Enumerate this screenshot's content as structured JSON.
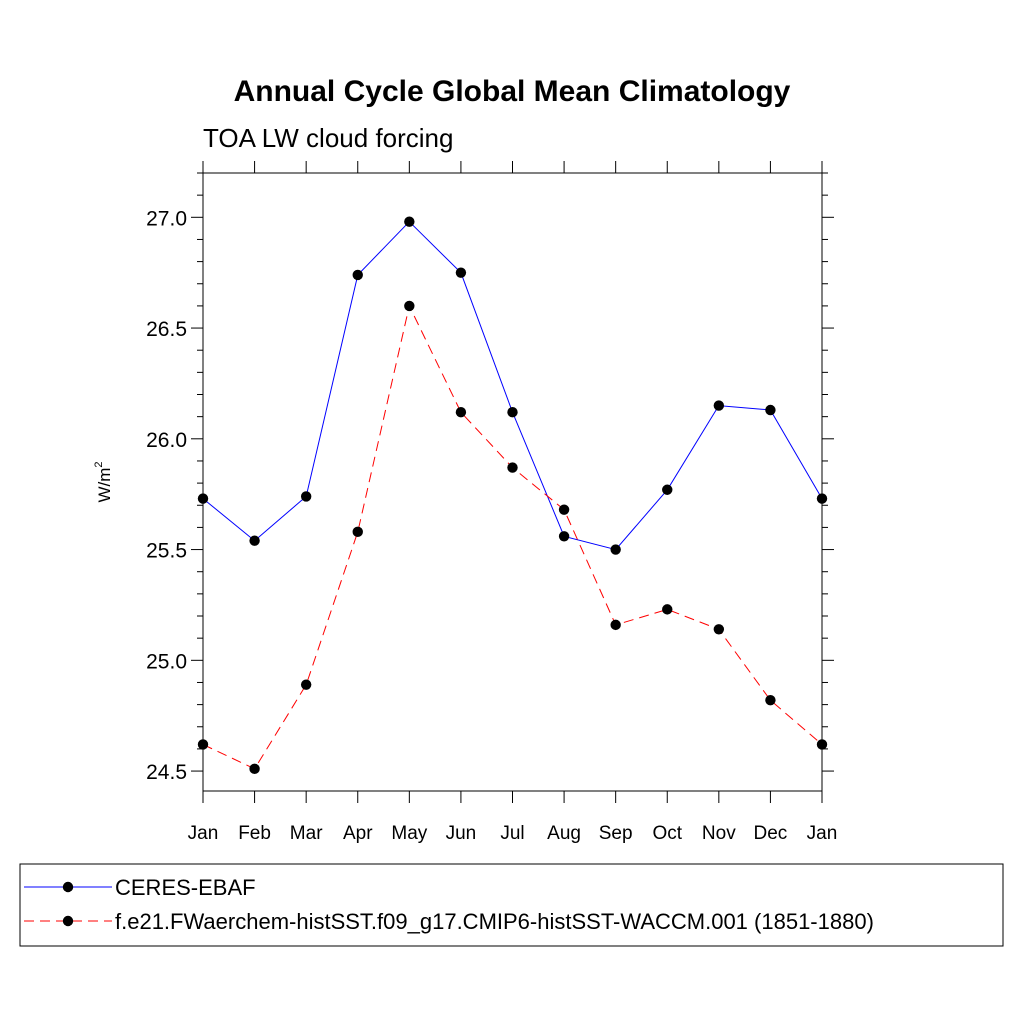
{
  "chart_data": {
    "type": "line",
    "title": "Annual Cycle Global Mean Climatology",
    "subtitle": "TOA LW cloud forcing",
    "xlabel": "",
    "ylabel": "W/m",
    "ylabel_superscript": "2",
    "categories": [
      "Jan",
      "Feb",
      "Mar",
      "Apr",
      "May",
      "Jun",
      "Jul",
      "Aug",
      "Sep",
      "Oct",
      "Nov",
      "Dec",
      "Jan"
    ],
    "ylim": [
      24.41,
      27.2
    ],
    "yticks": [
      24.5,
      25.0,
      25.5,
      26.0,
      26.5,
      27.0
    ],
    "ytick_labels": [
      "24.5",
      "25.0",
      "25.5",
      "26.0",
      "26.5",
      "27.0"
    ],
    "grid": false,
    "legend_position": "bottom",
    "series": [
      {
        "name": "CERES-EBAF",
        "color": "#0000ff",
        "dash": "solid",
        "marker": "circle",
        "values": [
          25.73,
          25.54,
          25.74,
          26.74,
          26.98,
          26.75,
          26.12,
          25.56,
          25.5,
          25.77,
          26.15,
          26.13,
          25.73
        ]
      },
      {
        "name": "f.e21.FWaerchem-histSST.f09_g17.CMIP6-histSST-WACCM.001 (1851-1880)",
        "color": "#ff0000",
        "dash": "dashed",
        "marker": "circle",
        "values": [
          24.62,
          24.51,
          24.89,
          25.58,
          26.6,
          26.12,
          25.87,
          25.68,
          25.16,
          25.23,
          25.14,
          24.82,
          24.62
        ]
      }
    ]
  }
}
